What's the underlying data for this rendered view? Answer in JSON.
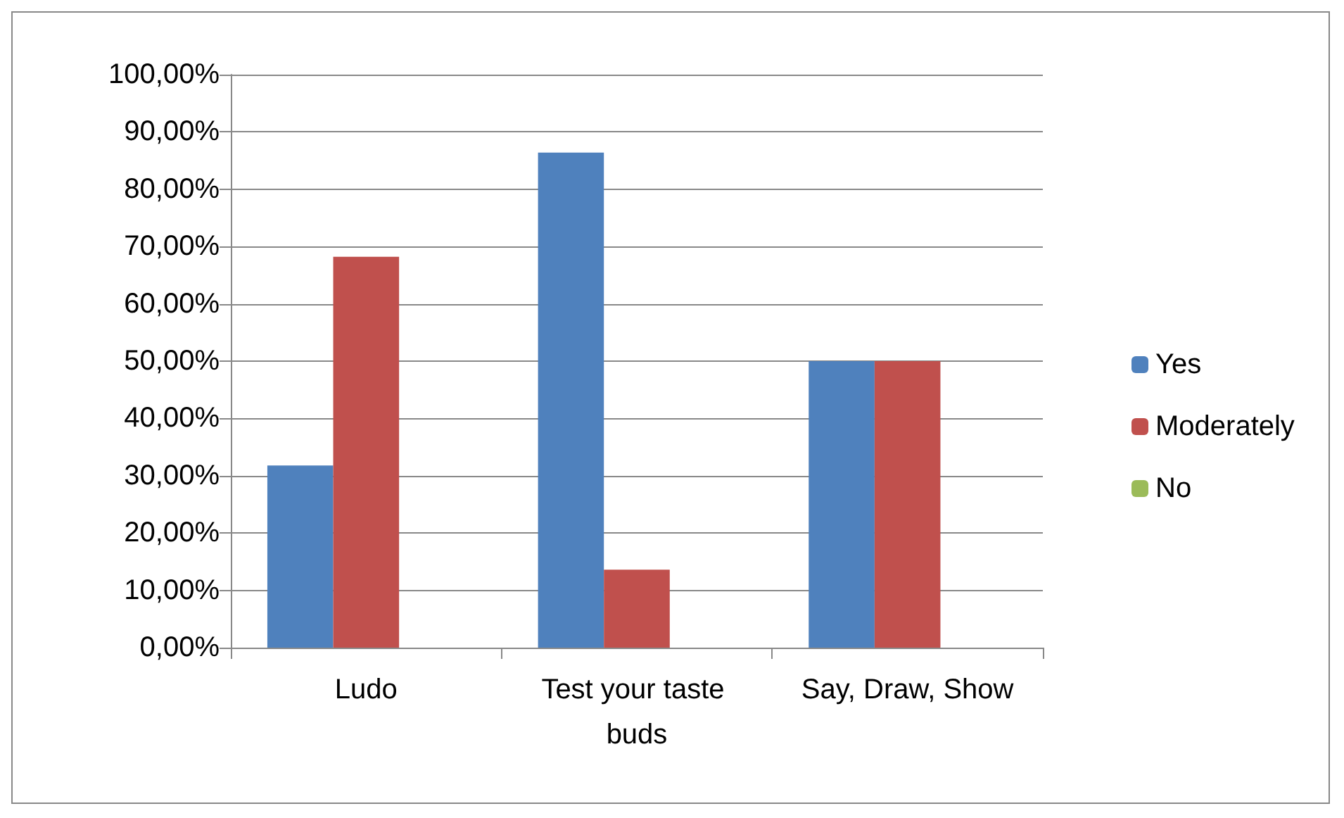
{
  "chart_data": {
    "type": "bar",
    "categories": [
      "Ludo",
      "Test your taste buds",
      "Say, Draw, Show"
    ],
    "series": [
      {
        "name": "Yes",
        "color": "#4f81bd",
        "values": [
          31.8,
          86.4,
          50
        ]
      },
      {
        "name": "Moderately",
        "color": "#c0504d",
        "values": [
          68.2,
          13.6,
          50
        ]
      },
      {
        "name": "No",
        "color": "#9bbb59",
        "values": [
          0,
          0,
          0
        ]
      }
    ],
    "ylim": [
      0,
      100
    ],
    "yticks": [
      {
        "value": 0,
        "label": "0,00%"
      },
      {
        "value": 10,
        "label": "10,00%"
      },
      {
        "value": 20,
        "label": "20,00%"
      },
      {
        "value": 30,
        "label": "30,00%"
      },
      {
        "value": 40,
        "label": "40,00%"
      },
      {
        "value": 50,
        "label": "50,00%"
      },
      {
        "value": 60,
        "label": "60,00%"
      },
      {
        "value": 70,
        "label": "70,00%"
      },
      {
        "value": 80,
        "label": "80,00%"
      },
      {
        "value": 90,
        "label": "90,00%"
      },
      {
        "value": 100,
        "label": "100,00%"
      }
    ],
    "grid": "y",
    "legend": "right"
  }
}
